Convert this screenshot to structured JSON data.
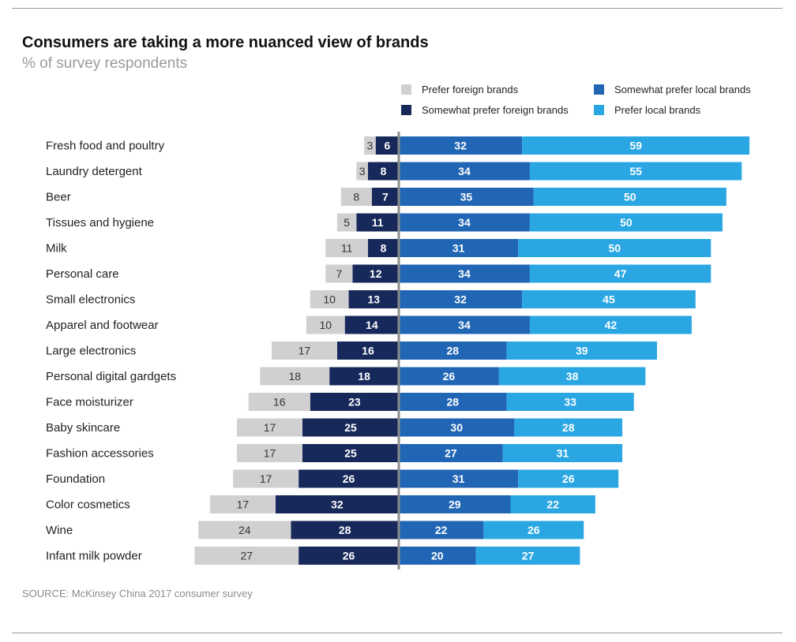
{
  "header": {
    "title": "Consumers are taking a more nuanced view of brands",
    "subtitle": "% of survey respondents"
  },
  "footer": {
    "source": "SOURCE: McKinsey China 2017 consumer survey"
  },
  "legend": [
    {
      "name": "Prefer foreign brands",
      "color": "#d0d0d2"
    },
    {
      "name": "Somewhat prefer local brands",
      "color": "#2166b5"
    },
    {
      "name": "Somewhat prefer foreign brands",
      "color": "#17285a"
    },
    {
      "name": "Prefer local brands",
      "color": "#2aa7e3"
    }
  ],
  "chart_data": {
    "type": "bar",
    "orientation": "horizontal",
    "stacking": "diverging",
    "title": "Consumers are taking a more nuanced view of brands",
    "subtitle": "% of survey respondents",
    "categories": [
      "Fresh food and poultry",
      "Laundry detergent",
      "Beer",
      "Tissues and hygiene",
      "Milk",
      "Personal care",
      "Small electronics",
      "Apparel and footwear",
      "Large electronics",
      "Personal digital gardgets",
      "Face moisturizer",
      "Baby skincare",
      "Fashion accessories",
      "Foundation",
      "Color cosmetics",
      "Wine",
      "Infant milk powder"
    ],
    "series": [
      {
        "name": "Prefer foreign brands",
        "side": "left",
        "color": "#d0d0d2",
        "label_color": "#333333",
        "values": [
          3,
          3,
          8,
          5,
          11,
          7,
          10,
          10,
          17,
          18,
          16,
          17,
          17,
          17,
          17,
          24,
          27
        ]
      },
      {
        "name": "Somewhat prefer foreign brands",
        "side": "left",
        "color": "#17285a",
        "label_color": "#ffffff",
        "values": [
          6,
          8,
          7,
          11,
          8,
          12,
          13,
          14,
          16,
          18,
          23,
          25,
          25,
          26,
          32,
          28,
          26
        ]
      },
      {
        "name": "Somewhat prefer local brands",
        "side": "right",
        "color": "#2166b5",
        "label_color": "#ffffff",
        "values": [
          32,
          34,
          35,
          34,
          31,
          34,
          32,
          34,
          28,
          26,
          28,
          30,
          27,
          31,
          29,
          22,
          20
        ]
      },
      {
        "name": "Prefer local brands",
        "side": "right",
        "color": "#2aa7e3",
        "label_color": "#ffffff",
        "values": [
          59,
          55,
          50,
          50,
          50,
          47,
          45,
          42,
          39,
          38,
          33,
          28,
          31,
          26,
          22,
          26,
          27
        ]
      }
    ],
    "divider_color": "#8c8c8c"
  }
}
